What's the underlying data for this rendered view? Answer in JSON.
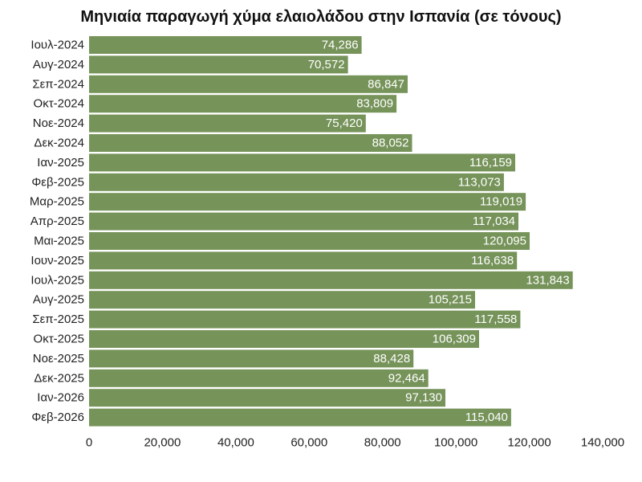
{
  "chart_data": {
    "type": "bar",
    "orientation": "horizontal",
    "title": "Μηνιαία παραγωγή χύμα ελαιολάδου στην Ισπανία (σε τόνους)",
    "xlabel": "",
    "ylabel": "",
    "categories": [
      "Ιουλ-2024",
      "Αυγ-2024",
      "Σεπ-2024",
      "Οκτ-2024",
      "Νοε-2024",
      "Δεκ-2024",
      "Ιαν-2025",
      "Φεβ-2025",
      "Μαρ-2025",
      "Απρ-2025",
      "Μαι-2025",
      "Ιουν-2025",
      "Ιουλ-2025",
      "Αυγ-2025",
      "Σεπ-2025",
      "Οκτ-2025",
      "Νοε-2025",
      "Δεκ-2025",
      "Ιαν-2026",
      "Φεβ-2026"
    ],
    "values": [
      74286,
      70572,
      86847,
      83809,
      75420,
      88052,
      116159,
      113073,
      119019,
      117034,
      120095,
      116638,
      131843,
      105215,
      117558,
      106309,
      88428,
      92464,
      97130,
      115040
    ],
    "value_labels": [
      "74,286",
      "70,572",
      "86,847",
      "83,809",
      "75,420",
      "88,052",
      "116,159",
      "113,073",
      "119,019",
      "117,034",
      "120,095",
      "116,638",
      "131,843",
      "105,215",
      "117,558",
      "106,309",
      "88,428",
      "92,464",
      "97,130",
      "115,040"
    ],
    "xlim": [
      0,
      140000
    ],
    "x_ticks": [
      0,
      20000,
      40000,
      60000,
      80000,
      100000,
      120000,
      140000
    ],
    "x_tick_labels": [
      "0",
      "20,000",
      "40,000",
      "60,000",
      "80,000",
      "100,000",
      "120,000",
      "140,000"
    ],
    "grid": false,
    "bar_color": "#76935a"
  }
}
